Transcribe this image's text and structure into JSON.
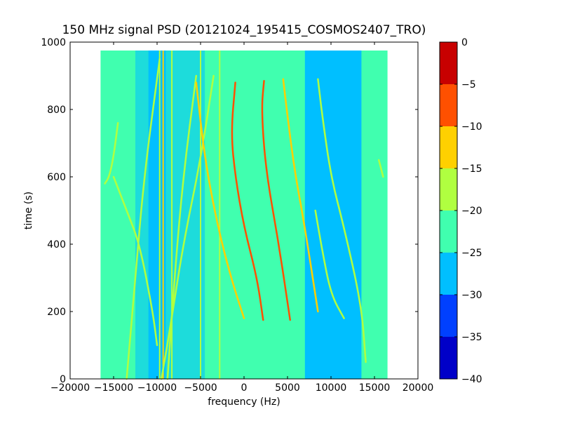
{
  "chart_data": {
    "type": "heatmap",
    "title": "150 MHz signal PSD (20121024_195415_COSMOS2407_TRO)",
    "xlabel": "frequency (Hz)",
    "ylabel": "time (s)",
    "xlim": [
      -20000,
      20000
    ],
    "ylim": [
      0,
      1000
    ],
    "x_ticks": [
      -20000,
      -15000,
      -10000,
      -5000,
      0,
      5000,
      10000,
      15000,
      20000
    ],
    "x_tick_labels": [
      "−20000",
      "−15000",
      "−10000",
      "−5000",
      "0",
      "5000",
      "10000",
      "15000",
      "20000"
    ],
    "y_ticks": [
      0,
      200,
      400,
      600,
      800,
      1000
    ],
    "y_tick_labels": [
      "0",
      "200",
      "400",
      "600",
      "800",
      "1000"
    ],
    "data_extent": {
      "x": [
        -16500,
        16500
      ],
      "y": [
        0,
        975
      ]
    },
    "grid": false,
    "background_level_db": -22.5,
    "noise_bands": [
      {
        "x": [
          -11000,
          -9000
        ],
        "level_db": -27.5
      },
      {
        "x": [
          7000,
          13500
        ],
        "level_db": -27.5
      },
      {
        "x": [
          -12500,
          -11000
        ],
        "level_db": -25.5
      },
      {
        "x": [
          -9000,
          -4500
        ],
        "level_db": -25.5
      },
      {
        "x": [
          -4500,
          -2500
        ],
        "level_db": -24.5
      }
    ],
    "vertical_lines": [
      {
        "x": -10500,
        "level_db": -27.5
      },
      {
        "x": -9700,
        "level_db": -17.5
      },
      {
        "x": -9300,
        "level_db": -12.5
      },
      {
        "x": -8300,
        "level_db": -17.5
      },
      {
        "x": -5000,
        "level_db": -17.5
      },
      {
        "x": -2800,
        "level_db": -17.5
      },
      {
        "x": 10000,
        "level_db": -27.5
      }
    ],
    "traces": [
      {
        "points": [
          [
            -9700,
            950
          ],
          [
            -11500,
            600
          ],
          [
            -12500,
            300
          ],
          [
            -13500,
            0
          ]
        ],
        "level_db": -17.5
      },
      {
        "points": [
          [
            -5500,
            900
          ],
          [
            -7000,
            600
          ],
          [
            -8000,
            300
          ],
          [
            -8800,
            0
          ]
        ],
        "level_db": -17.5
      },
      {
        "points": [
          [
            -3500,
            900
          ],
          [
            -5000,
            650
          ],
          [
            -7000,
            400
          ],
          [
            -8500,
            150
          ],
          [
            -9500,
            0
          ]
        ],
        "level_db": -17.5
      },
      {
        "points": [
          [
            -14500,
            760
          ],
          [
            -15000,
            660
          ],
          [
            -15500,
            600
          ],
          [
            -16000,
            580
          ]
        ],
        "level_db": -17.5
      },
      {
        "points": [
          [
            -15000,
            600
          ],
          [
            -13500,
            500
          ],
          [
            -12000,
            400
          ],
          [
            -10500,
            200
          ],
          [
            -10000,
            100
          ]
        ],
        "level_db": -17.5
      },
      {
        "points": [
          [
            -5500,
            880
          ],
          [
            -4500,
            650
          ],
          [
            -3000,
            450
          ],
          [
            -1500,
            300
          ],
          [
            0,
            180
          ]
        ],
        "level_db": -12.5
      },
      {
        "points": [
          [
            -1000,
            880
          ],
          [
            -1500,
            730
          ],
          [
            -1000,
            600
          ],
          [
            0,
            450
          ],
          [
            1500,
            300
          ],
          [
            2200,
            175
          ]
        ],
        "level_db": -7.5
      },
      {
        "points": [
          [
            2300,
            885
          ],
          [
            2000,
            800
          ],
          [
            2500,
            620
          ],
          [
            4000,
            400
          ],
          [
            5300,
            175
          ]
        ],
        "level_db": -7.5
      },
      {
        "points": [
          [
            4500,
            890
          ],
          [
            5000,
            780
          ],
          [
            5800,
            620
          ],
          [
            7000,
            450
          ],
          [
            8500,
            200
          ]
        ],
        "level_db": -12.5
      },
      {
        "points": [
          [
            8500,
            890
          ],
          [
            9000,
            780
          ],
          [
            10000,
            600
          ],
          [
            11500,
            450
          ],
          [
            13500,
            220
          ],
          [
            14000,
            50
          ]
        ],
        "level_db": -17.5
      },
      {
        "points": [
          [
            8200,
            500
          ],
          [
            9000,
            380
          ],
          [
            10000,
            250
          ],
          [
            11500,
            180
          ]
        ],
        "level_db": -17.5
      },
      {
        "points": [
          [
            15500,
            650
          ],
          [
            16000,
            600
          ]
        ],
        "level_db": -17.5
      }
    ],
    "colorbar": {
      "range": [
        -40,
        0
      ],
      "ticks": [
        0,
        -5,
        -10,
        -15,
        -20,
        -25,
        -30,
        -35,
        -40
      ],
      "tick_labels": [
        "0",
        "−5",
        "−10",
        "−15",
        "−20",
        "−25",
        "−30",
        "−35",
        "−40"
      ],
      "colors_bottom_to_top": [
        "#0000c8",
        "#0040ff",
        "#00bfff",
        "#40ffaf",
        "#b0ff40",
        "#ffd000",
        "#ff5000",
        "#c80000"
      ]
    }
  }
}
